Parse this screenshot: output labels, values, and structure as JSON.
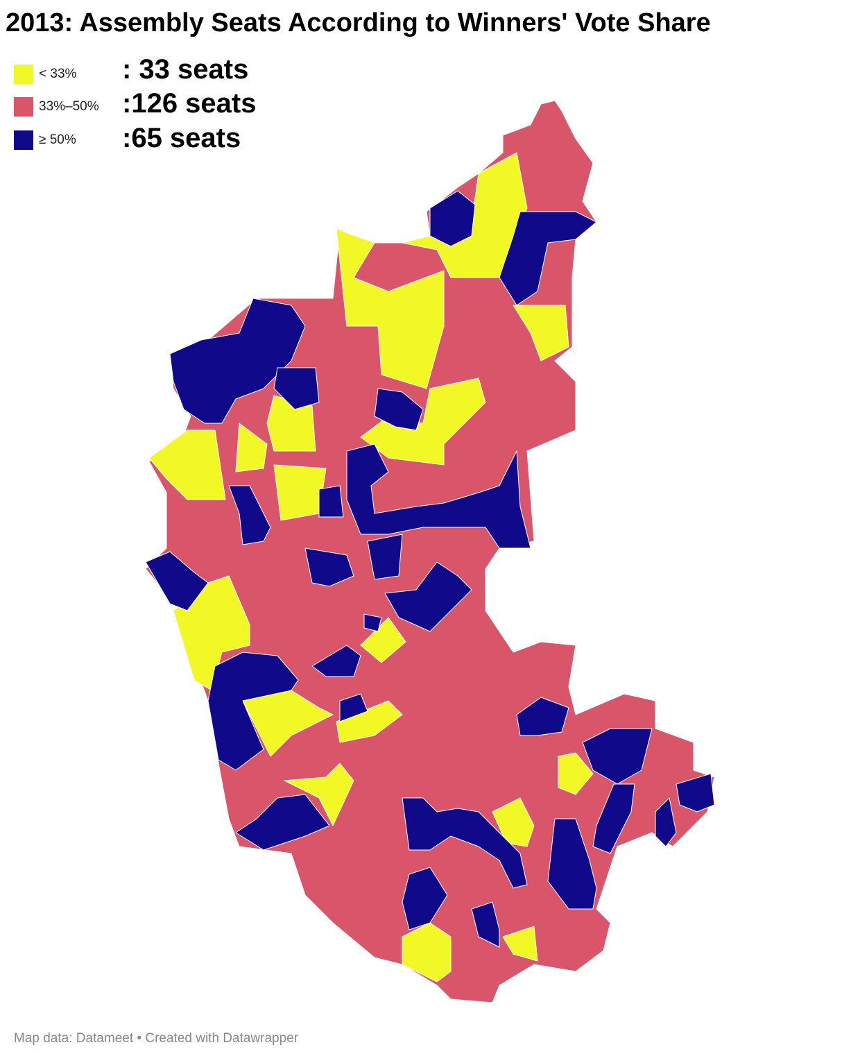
{
  "title": "2013: Assembly Seats According to Winners' Vote Share",
  "legend": [
    {
      "label": "< 33%",
      "color": "#f2f726",
      "seats": ": 33 seats"
    },
    {
      "label": "33%–50%",
      "color": "#d9566a",
      "seats": ":126 seats"
    },
    {
      "label": "≥ 50%",
      "color": "#10098a",
      "seats": ":65 seats"
    }
  ],
  "footer": "Map data: Datameet • Created with Datawrapper"
}
